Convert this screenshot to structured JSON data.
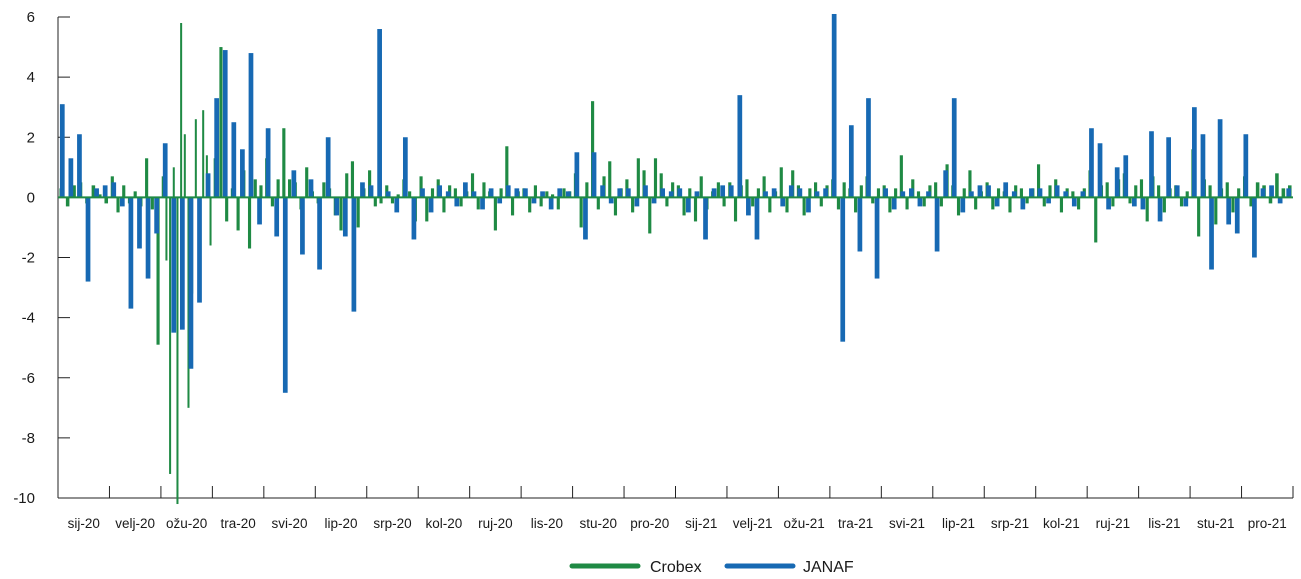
{
  "chart_data": {
    "type": "bar",
    "title": "",
    "xlabel": "",
    "ylabel": "",
    "ylim": [
      -10,
      6
    ],
    "yticks": [
      6,
      4,
      2,
      0,
      -2,
      -4,
      -6,
      -8,
      -10
    ],
    "ytick_labels": [
      "6",
      "4",
      "2",
      "0",
      "-2",
      "-4",
      "-6",
      "-8",
      "-10"
    ],
    "categories": [
      "sij-20",
      "velj-20",
      "ožu-20",
      "tra-20",
      "svi-20",
      "lip-20",
      "srp-20",
      "kol-20",
      "ruj-20",
      "lis-20",
      "stu-20",
      "pro-20",
      "sij-21",
      "velj-21",
      "ožu-21",
      "tra-21",
      "svi-21",
      "lip-21",
      "srp-21",
      "kol-21",
      "ruj-21",
      "lis-21",
      "stu-21",
      "pro-21"
    ],
    "x_unit": "daily observations, grouped by month",
    "legend_position": "bottom-center",
    "grid": false,
    "series": [
      {
        "name": "Crobex",
        "color": "#1f8a44",
        "values": [
          [
            0.3,
            -0.3,
            0.4,
            0.5,
            -0.2,
            0.4,
            0.1,
            -0.2
          ],
          [
            0.7,
            -0.5,
            0.4,
            -0.2,
            0.2,
            -0.3,
            1.3,
            -0.4,
            -4.9
          ],
          [
            0.7,
            -2.1,
            -9.2,
            1.0,
            -10.2,
            5.8,
            2.1,
            -7.0,
            -3.2,
            2.6,
            -3.0,
            2.9,
            1.4,
            -1.6
          ],
          [
            1.3,
            5.0,
            -0.8,
            0.3,
            -1.1,
            0.9,
            -1.7,
            0.6,
            0.4
          ],
          [
            1.3,
            -0.3,
            0.6,
            2.3,
            0.6,
            0.5,
            -0.4,
            1.0,
            0.2
          ],
          [
            -0.2,
            0.5,
            0.3,
            -0.6,
            -1.1,
            0.8,
            1.2,
            -1.0,
            0.3
          ],
          [
            0.9,
            -0.3,
            -0.2,
            0.4,
            -0.2,
            0.1,
            0.6,
            0.2,
            -0.8
          ],
          [
            0.7,
            -0.8,
            0.3,
            0.6,
            -0.5,
            0.4,
            0.3,
            -0.3,
            0.2
          ],
          [
            0.8,
            -0.4,
            0.5,
            0.2,
            -1.1,
            0.3,
            1.7,
            -0.6,
            0.2
          ],
          [
            0.3,
            -0.5,
            0.4,
            -0.3,
            0.2,
            0.1,
            -0.4,
            0.3,
            0.2
          ],
          [
            0.8,
            -1.0,
            0.5,
            3.2,
            -0.4,
            0.7,
            1.2,
            -0.6,
            0.3
          ],
          [
            0.6,
            -0.5,
            1.3,
            0.9,
            -1.2,
            1.3,
            0.8,
            -0.3,
            0.5
          ],
          [
            0.4,
            -0.6,
            0.3,
            -0.8,
            0.7,
            -0.4,
            0.2,
            0.5,
            -0.3
          ],
          [
            0.5,
            -0.8,
            0.4,
            0.6,
            -0.3,
            0.3,
            0.7,
            -0.5,
            0.2
          ],
          [
            1.0,
            -0.5,
            0.9,
            0.4,
            -0.6,
            0.3,
            0.5,
            -0.3,
            0.4
          ],
          [
            0.6,
            -0.4,
            0.5,
            0.3,
            -0.5,
            0.4,
            0.7,
            -0.2,
            0.3
          ],
          [
            0.4,
            -0.5,
            0.3,
            1.4,
            -0.4,
            0.6,
            0.2,
            -0.3,
            0.4
          ],
          [
            0.5,
            -0.3,
            1.1,
            0.4,
            -0.6,
            0.3,
            0.9,
            -0.4,
            0.2
          ],
          [
            0.5,
            -0.4,
            0.3,
            0.2,
            -0.5,
            0.4,
            0.3,
            -0.2,
            0.3
          ],
          [
            1.1,
            -0.3,
            0.4,
            0.6,
            -0.5,
            0.3,
            0.2,
            -0.4,
            0.3
          ],
          [
            0.9,
            -1.5,
            0.4,
            0.5,
            -0.3,
            0.6,
            0.8,
            -0.2,
            0.4
          ],
          [
            0.6,
            -0.8,
            0.7,
            0.4,
            -0.5,
            0.3,
            0.4,
            -0.3,
            0.2
          ],
          [
            1.6,
            -1.3,
            0.6,
            0.4,
            -0.9,
            0.3,
            0.5,
            -0.5,
            0.3
          ],
          [
            0.7,
            -0.3,
            0.5,
            0.4,
            -0.2,
            0.8,
            0.3,
            0.4
          ]
        ]
      },
      {
        "name": "JANAF",
        "color": "#1769b3",
        "values": [
          [
            3.1,
            1.3,
            2.1,
            -2.8,
            0.3,
            0.4
          ],
          [
            0.5,
            -0.3,
            -3.7,
            -1.7,
            -2.7,
            -1.2
          ],
          [
            1.8,
            -4.5,
            -4.4,
            -5.7,
            -3.5,
            0.8
          ],
          [
            3.3,
            4.9,
            2.5,
            1.6,
            4.8,
            -0.9
          ],
          [
            2.3,
            -1.3,
            -6.5,
            0.9,
            -1.9,
            0.6
          ],
          [
            -2.4,
            2.0,
            -0.6,
            -1.3,
            -3.8,
            0.5
          ],
          [
            0.4,
            5.6,
            0.2,
            -0.5,
            2.0,
            -1.4
          ],
          [
            0.3,
            -0.5,
            0.4,
            0.2,
            -0.3,
            0.5
          ],
          [
            0.2,
            -0.4,
            0.3,
            -0.2,
            0.4,
            0.3
          ],
          [
            0.3,
            -0.2,
            0.2,
            -0.4,
            0.3,
            0.2
          ],
          [
            1.5,
            -1.4,
            1.5,
            0.4,
            -0.2,
            0.3
          ],
          [
            0.3,
            -0.3,
            0.4,
            -0.2,
            0.3,
            0.2
          ],
          [
            0.3,
            -0.5,
            0.2,
            -1.4,
            0.3,
            0.4
          ],
          [
            0.4,
            3.4,
            -0.6,
            -1.4,
            0.2,
            0.3
          ],
          [
            -0.3,
            0.4,
            0.3,
            -0.5,
            0.2,
            0.3
          ],
          [
            6.1,
            -4.8,
            2.4,
            -1.8,
            3.3,
            -2.7
          ],
          [
            0.3,
            -0.4,
            0.2,
            0.3,
            -0.3,
            0.2
          ],
          [
            -1.8,
            0.9,
            3.3,
            -0.5,
            0.2,
            0.4
          ],
          [
            0.4,
            -0.3,
            0.5,
            0.2,
            -0.4,
            0.3
          ],
          [
            0.3,
            -0.2,
            0.4,
            0.2,
            -0.3,
            0.2
          ],
          [
            2.3,
            1.8,
            -0.4,
            1.0,
            1.4,
            -0.3
          ],
          [
            -0.4,
            2.2,
            -0.8,
            2.0,
            0.4,
            -0.3
          ],
          [
            3.0,
            2.1,
            -2.4,
            2.6,
            -0.9,
            -1.2
          ],
          [
            2.1,
            -2.0,
            0.3,
            0.4,
            -0.2,
            0.3
          ]
        ]
      }
    ]
  }
}
